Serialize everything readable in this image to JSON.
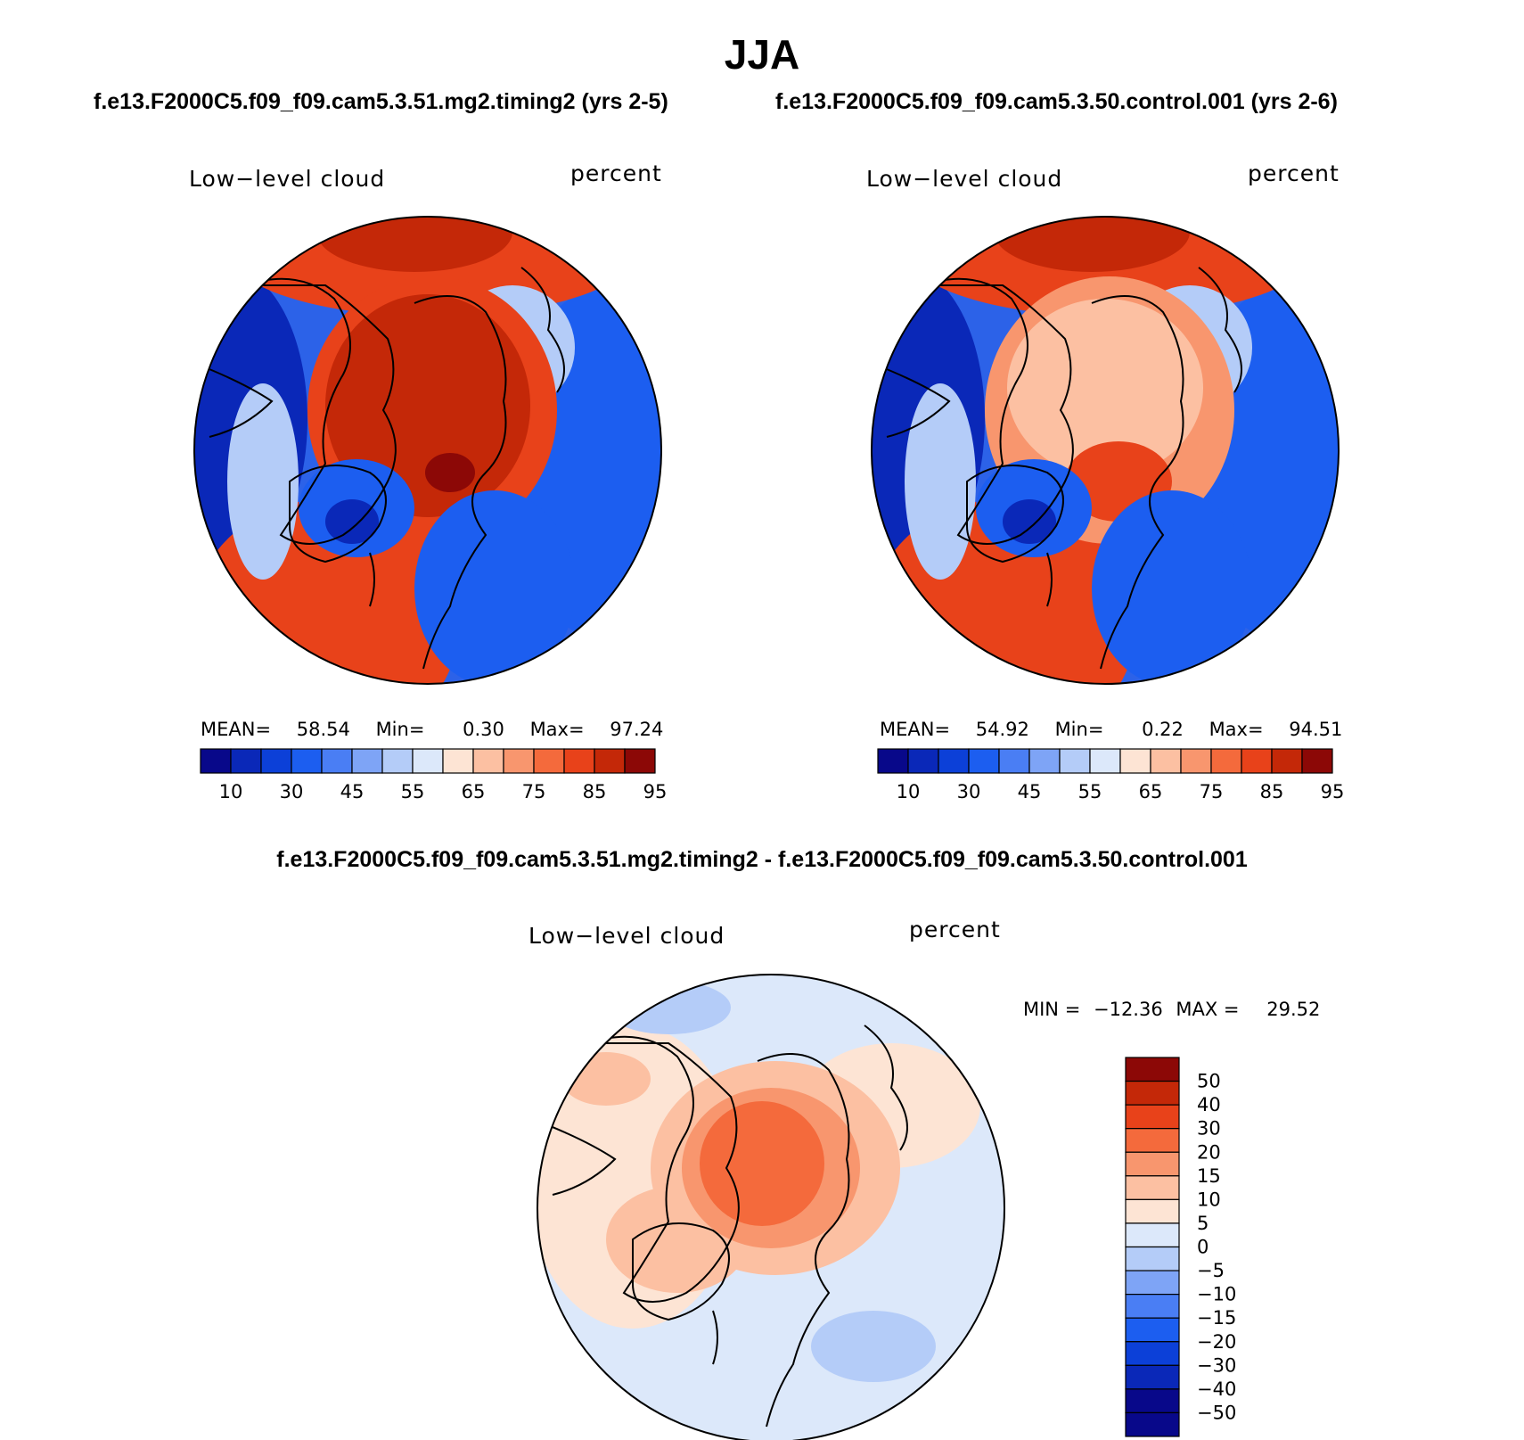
{
  "title": "JJA",
  "cases": {
    "test": "f.e13.F2000C5.f09_f09.cam5.3.51.mg2.timing2 (yrs 2-5)",
    "control": "f.e13.F2000C5.f09_f09.cam5.3.50.control.001 (yrs 2-6)",
    "difference": "f.e13.F2000C5.f09_f09.cam5.3.51.mg2.timing2 - f.e13.F2000C5.f09_f09.cam5.3.50.control.001"
  },
  "panels": {
    "test": {
      "variable": "Low−level cloud",
      "units": "percent",
      "mean_label": "MEAN=",
      "mean": "58.54",
      "min_label": "Min=",
      "min": "0.30",
      "max_label": "Max=",
      "max": "97.24"
    },
    "control": {
      "variable": "Low−level cloud",
      "units": "percent",
      "mean_label": "MEAN=",
      "mean": "54.92",
      "min_label": "Min=",
      "min": "0.22",
      "max_label": "Max=",
      "max": "94.51"
    },
    "diff": {
      "variable": "Low−level cloud",
      "units": "percent",
      "min_label": "MIN =",
      "min": "−12.36",
      "max_label": "MAX =",
      "max": "29.52"
    }
  },
  "colorbars": {
    "abs": {
      "colors": [
        "#08088a",
        "#0a28b8",
        "#0c40d8",
        "#1c5ef0",
        "#4a7ef4",
        "#7ea4f6",
        "#b4ccf8",
        "#dce8fa",
        "#fde4d4",
        "#fcc0a2",
        "#f8966e",
        "#f46a3c",
        "#e8421a",
        "#c42808",
        "#8c0806"
      ],
      "tick_labels": [
        "10",
        "30",
        "45",
        "55",
        "65",
        "75",
        "85",
        "95"
      ]
    },
    "diff": {
      "colors": [
        "#08088a",
        "#0a28b8",
        "#0c40d8",
        "#1c5ef0",
        "#4a7ef4",
        "#7ea4f6",
        "#b4ccf8",
        "#dce8fa",
        "#fde4d4",
        "#fcc0a2",
        "#f8966e",
        "#f46a3c",
        "#e8421a",
        "#c42808",
        "#8c0806"
      ],
      "tick_labels": [
        "−50",
        "−40",
        "−30",
        "−20",
        "−15",
        "−10",
        "−5",
        "0",
        "5",
        "10",
        "15",
        "20",
        "30",
        "40",
        "50"
      ]
    }
  }
}
